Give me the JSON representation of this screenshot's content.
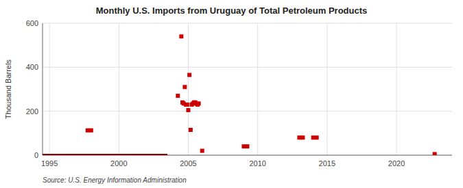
{
  "chart_data": {
    "type": "scatter",
    "title": "Monthly U.S. Imports from Uruguay of Total Petroleum Products",
    "ylabel": "Thousand Barrels",
    "source": "Source: U.S. Energy Information Administration",
    "xlim": [
      1994.5,
      2024.0
    ],
    "xticks": [
      1995,
      2000,
      2005,
      2010,
      2015,
      2020
    ],
    "ylim": [
      0,
      600
    ],
    "yticks": [
      0,
      200,
      400,
      600
    ],
    "grid": true,
    "series": [
      {
        "type": "scatter",
        "color": "#cc0000",
        "marker": "square",
        "x": [
          1997.75,
          1998.0,
          2004.25,
          2004.5,
          2004.583,
          2004.667,
          2004.75,
          2004.833,
          2004.917,
          2005.0,
          2005.083,
          2005.167,
          2005.25,
          2005.333,
          2005.417,
          2005.5,
          2005.583,
          2005.667,
          2005.75,
          2006.0,
          2009.0,
          2009.25,
          2013.0,
          2013.25,
          2014.0,
          2014.25,
          2022.75
        ],
        "values": [
          113,
          113,
          270,
          540,
          240,
          235,
          310,
          230,
          230,
          205,
          365,
          115,
          230,
          235,
          240,
          240,
          235,
          230,
          235,
          20,
          40,
          40,
          80,
          80,
          80,
          80,
          5
        ]
      },
      {
        "type": "line",
        "color": "#8b0000",
        "line_style": "solid",
        "x": [
          1994.5,
          2003.5
        ],
        "values": [
          0,
          0
        ]
      }
    ]
  }
}
